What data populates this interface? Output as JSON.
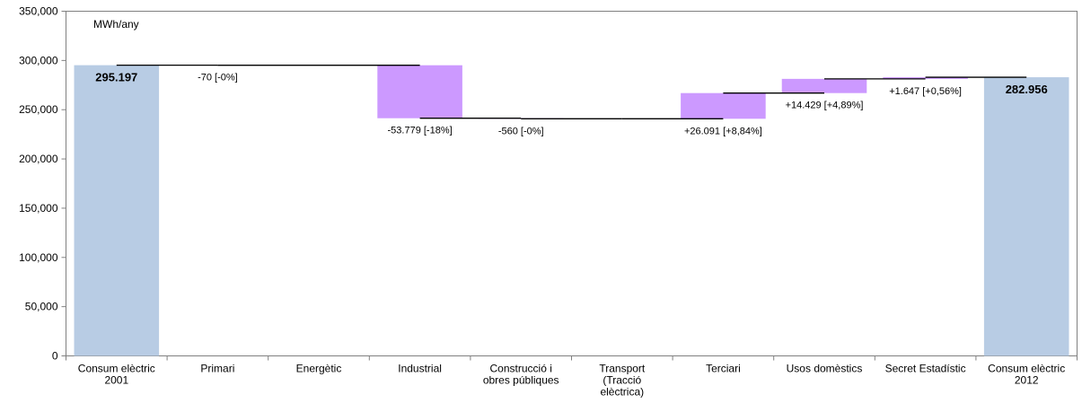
{
  "chart_data": {
    "type": "waterfall",
    "unit_label": "MWh/any",
    "ylim": [
      0,
      350000
    ],
    "y_ticks": [
      0,
      50000,
      100000,
      150000,
      200000,
      250000,
      300000,
      350000
    ],
    "y_tick_labels": [
      "0",
      "50,000",
      "100,000",
      "150,000",
      "200,000",
      "250,000",
      "300,000",
      "350,000"
    ],
    "categories": [
      [
        "Consum elèctric",
        "2001"
      ],
      [
        "Primari"
      ],
      [
        "Energètic"
      ],
      [
        "Industrial"
      ],
      [
        "Construcció i",
        "obres públiques"
      ],
      [
        "Transport",
        "(Tracció",
        "elèctrica)"
      ],
      [
        "Terciari"
      ],
      [
        "Usos domèstics"
      ],
      [
        "Secret Estadístic"
      ],
      [
        "Consum elèctric",
        "2012"
      ]
    ],
    "bars": [
      {
        "kind": "total",
        "start": 0,
        "end": 295197,
        "label": "295.197",
        "label_pos": "inside-top",
        "bold": true
      },
      {
        "kind": "delta",
        "start": 295197,
        "end": 295127,
        "label": "-70 [-0%]",
        "label_pos": "below"
      },
      {
        "kind": "delta",
        "start": 295127,
        "end": 295127,
        "label": "",
        "label_pos": "none"
      },
      {
        "kind": "delta",
        "start": 295127,
        "end": 241348,
        "label": "-53.779 [-18%]",
        "label_pos": "below"
      },
      {
        "kind": "delta",
        "start": 241348,
        "end": 240788,
        "label": "-560 [-0%]",
        "label_pos": "below"
      },
      {
        "kind": "delta",
        "start": 240788,
        "end": 240788,
        "label": "",
        "label_pos": "none"
      },
      {
        "kind": "delta",
        "start": 240788,
        "end": 266879,
        "label": "+26.091 [+8,84%]",
        "label_pos": "below"
      },
      {
        "kind": "delta",
        "start": 266879,
        "end": 281308,
        "label": "+14.429 [+4,89%]",
        "label_pos": "below"
      },
      {
        "kind": "delta",
        "start": 281308,
        "end": 282956,
        "label": "+1.647 [+0,56%]",
        "label_pos": "below"
      },
      {
        "kind": "total",
        "start": 0,
        "end": 282956,
        "label": "282.956",
        "label_pos": "inside-top",
        "bold": true
      }
    ],
    "colors": {
      "total": "#b8cce4",
      "delta": "#cc99ff",
      "connector": "#000000",
      "frame": "#808080"
    }
  }
}
